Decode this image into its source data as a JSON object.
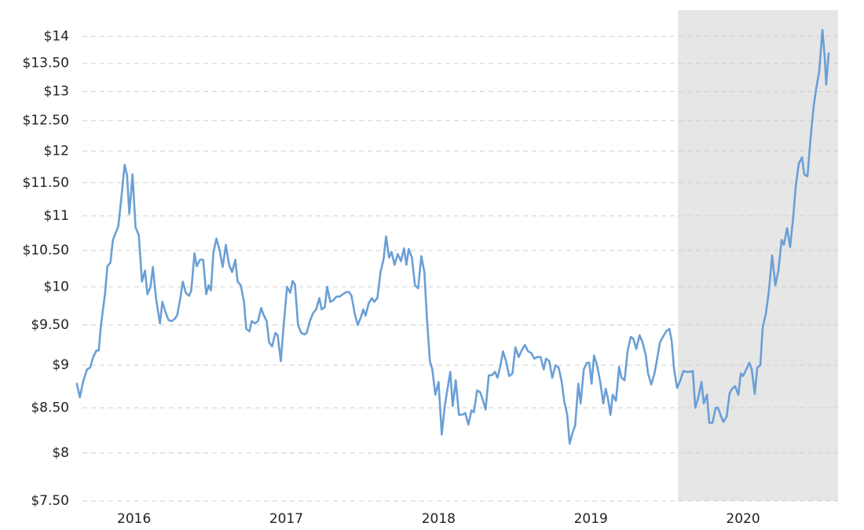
{
  "chart_data": {
    "type": "line",
    "log_scale_y": true,
    "grid": true,
    "xlim": [
      2015.62,
      2020.624
    ],
    "xticks": [
      2016,
      2017,
      2018,
      2019,
      2020
    ],
    "ylim": [
      7.5,
      14.5
    ],
    "yticks": [
      {
        "value": 7.5,
        "label": "$7.50"
      },
      {
        "value": 8,
        "label": "$8"
      },
      {
        "value": 8.5,
        "label": "$8.50"
      },
      {
        "value": 9,
        "label": "$9"
      },
      {
        "value": 9.5,
        "label": "$9.50"
      },
      {
        "value": 10,
        "label": "$10"
      },
      {
        "value": 10.5,
        "label": "$10.50"
      },
      {
        "value": 11,
        "label": "$11"
      },
      {
        "value": 11.5,
        "label": "$11.50"
      },
      {
        "value": 12,
        "label": "$12"
      },
      {
        "value": 12.5,
        "label": "$12.50"
      },
      {
        "value": 13,
        "label": "$13"
      },
      {
        "value": 13.5,
        "label": "$13.50"
      },
      {
        "value": 14,
        "label": "$14"
      }
    ],
    "shaded_x": [
      2019.572,
      2020.624
    ],
    "shade_color": "#e6e6e6",
    "x": [
      2015.624,
      2015.644,
      2015.665,
      2015.691,
      2015.711,
      2015.732,
      2015.753,
      2015.768,
      2015.783,
      2015.809,
      2015.825,
      2015.845,
      2015.861,
      2015.897,
      2015.918,
      2015.938,
      2015.954,
      2015.969,
      2015.99,
      2016.01,
      2016.031,
      2016.052,
      2016.072,
      2016.088,
      2016.108,
      2016.124,
      2016.144,
      2016.17,
      2016.186,
      2016.206,
      2016.227,
      2016.247,
      2016.268,
      2016.284,
      2016.304,
      2016.32,
      2016.34,
      2016.361,
      2016.376,
      2016.397,
      2016.412,
      2016.433,
      2016.454,
      2016.474,
      2016.49,
      2016.505,
      2016.521,
      2016.541,
      2016.562,
      2016.582,
      2016.603,
      2016.624,
      2016.644,
      2016.665,
      2016.68,
      2016.701,
      2016.722,
      2016.737,
      2016.758,
      2016.773,
      2016.794,
      2016.814,
      2016.835,
      2016.851,
      2016.871,
      2016.887,
      2016.907,
      2016.928,
      2016.943,
      2016.964,
      2016.985,
      2017.005,
      2017.026,
      2017.041,
      2017.057,
      2017.077,
      2017.098,
      2017.119,
      2017.134,
      2017.155,
      2017.175,
      2017.196,
      2017.217,
      2017.232,
      2017.253,
      2017.268,
      2017.289,
      2017.309,
      2017.33,
      2017.351,
      2017.371,
      2017.392,
      2017.412,
      2017.428,
      2017.449,
      2017.469,
      2017.49,
      2017.505,
      2017.521,
      2017.541,
      2017.562,
      2017.577,
      2017.598,
      2017.619,
      2017.639,
      2017.655,
      2017.675,
      2017.691,
      2017.711,
      2017.732,
      2017.753,
      2017.773,
      2017.789,
      2017.804,
      2017.825,
      2017.845,
      2017.866,
      2017.887,
      2017.907,
      2017.923,
      2017.943,
      2017.959,
      2017.979,
      2018.0,
      2018.021,
      2018.041,
      2018.057,
      2018.077,
      2018.093,
      2018.113,
      2018.134,
      2018.155,
      2018.175,
      2018.196,
      2018.216,
      2018.232,
      2018.253,
      2018.273,
      2018.289,
      2018.309,
      2018.33,
      2018.351,
      2018.371,
      2018.387,
      2018.407,
      2018.423,
      2018.443,
      2018.464,
      2018.485,
      2018.505,
      2018.526,
      2018.546,
      2018.567,
      2018.588,
      2018.608,
      2018.629,
      2018.649,
      2018.67,
      2018.691,
      2018.706,
      2018.727,
      2018.747,
      2018.768,
      2018.789,
      2018.809,
      2018.825,
      2018.845,
      2018.861,
      2018.882,
      2018.897,
      2018.918,
      2018.933,
      2018.954,
      2018.974,
      2018.99,
      2019.005,
      2019.021,
      2019.041,
      2019.062,
      2019.082,
      2019.098,
      2019.113,
      2019.129,
      2019.144,
      2019.165,
      2019.186,
      2019.201,
      2019.222,
      2019.242,
      2019.263,
      2019.278,
      2019.299,
      2019.32,
      2019.34,
      2019.361,
      2019.376,
      2019.397,
      2019.418,
      2019.433,
      2019.454,
      2019.474,
      2019.495,
      2019.516,
      2019.531,
      2019.547,
      2019.567,
      2019.588,
      2019.608,
      2019.629,
      2019.65,
      2019.67,
      2019.686,
      2019.706,
      2019.727,
      2019.742,
      2019.763,
      2019.778,
      2019.799,
      2019.82,
      2019.835,
      2019.856,
      2019.871,
      2019.892,
      2019.912,
      2019.928,
      2019.948,
      2019.969,
      2019.985,
      2020.0,
      2020.021,
      2020.041,
      2020.057,
      2020.077,
      2020.093,
      2020.113,
      2020.129,
      2020.15,
      2020.17,
      2020.191,
      2020.212,
      2020.232,
      2020.253,
      2020.268,
      2020.289,
      2020.309,
      2020.33,
      2020.346,
      2020.366,
      2020.387,
      2020.402,
      2020.423,
      2020.443,
      2020.464,
      2020.48,
      2020.5,
      2020.521,
      2020.536,
      2020.546,
      2020.562
    ],
    "series": [
      {
        "color": "#6a9fd6",
        "values": [
          8.78,
          8.62,
          8.8,
          8.95,
          8.97,
          9.1,
          9.18,
          9.18,
          9.5,
          9.9,
          10.28,
          10.33,
          10.65,
          10.85,
          11.3,
          11.78,
          11.62,
          11.03,
          11.63,
          10.83,
          10.72,
          10.07,
          10.22,
          9.9,
          10.0,
          10.27,
          9.85,
          9.52,
          9.8,
          9.67,
          9.56,
          9.55,
          9.58,
          9.63,
          9.85,
          10.07,
          9.92,
          9.88,
          9.95,
          10.46,
          10.28,
          10.37,
          10.37,
          9.9,
          10.02,
          9.95,
          10.47,
          10.67,
          10.5,
          10.27,
          10.58,
          10.3,
          10.2,
          10.37,
          10.07,
          10.02,
          9.8,
          9.45,
          9.42,
          9.55,
          9.52,
          9.55,
          9.72,
          9.63,
          9.55,
          9.28,
          9.23,
          9.4,
          9.37,
          9.05,
          9.55,
          10.0,
          9.92,
          10.08,
          10.03,
          9.5,
          9.4,
          9.38,
          9.4,
          9.55,
          9.65,
          9.7,
          9.85,
          9.7,
          9.73,
          10.0,
          9.8,
          9.82,
          9.87,
          9.87,
          9.9,
          9.93,
          9.93,
          9.88,
          9.65,
          9.5,
          9.6,
          9.7,
          9.62,
          9.78,
          9.85,
          9.8,
          9.85,
          10.2,
          10.38,
          10.7,
          10.4,
          10.48,
          10.3,
          10.45,
          10.35,
          10.53,
          10.3,
          10.52,
          10.4,
          10.02,
          9.98,
          10.42,
          10.2,
          9.6,
          9.05,
          8.95,
          8.65,
          8.8,
          8.2,
          8.52,
          8.7,
          8.92,
          8.52,
          8.82,
          8.42,
          8.42,
          8.44,
          8.31,
          8.47,
          8.45,
          8.7,
          8.68,
          8.6,
          8.48,
          8.88,
          8.88,
          8.92,
          8.85,
          9.0,
          9.17,
          9.05,
          8.87,
          8.9,
          9.22,
          9.1,
          9.18,
          9.25,
          9.17,
          9.15,
          9.08,
          9.1,
          9.1,
          8.95,
          9.08,
          9.05,
          8.85,
          9.0,
          8.97,
          8.8,
          8.58,
          8.42,
          8.1,
          8.23,
          8.3,
          8.78,
          8.55,
          8.95,
          9.03,
          9.03,
          8.78,
          9.12,
          9.0,
          8.8,
          8.55,
          8.72,
          8.6,
          8.42,
          8.65,
          8.58,
          8.98,
          8.85,
          8.82,
          9.18,
          9.35,
          9.33,
          9.2,
          9.37,
          9.28,
          9.12,
          8.9,
          8.77,
          8.9,
          9.05,
          9.28,
          9.35,
          9.42,
          9.45,
          9.3,
          8.95,
          8.73,
          8.82,
          8.93,
          8.92,
          8.92,
          8.93,
          8.5,
          8.62,
          8.8,
          8.55,
          8.65,
          8.33,
          8.33,
          8.5,
          8.5,
          8.4,
          8.34,
          8.4,
          8.67,
          8.72,
          8.75,
          8.65,
          8.9,
          8.87,
          8.95,
          9.03,
          8.95,
          8.66,
          8.97,
          9.0,
          9.47,
          9.65,
          9.95,
          10.43,
          10.02,
          10.22,
          10.65,
          10.58,
          10.82,
          10.55,
          11.0,
          11.45,
          11.8,
          11.9,
          11.63,
          11.6,
          12.2,
          12.75,
          13.05,
          13.35,
          14.12,
          13.63,
          13.12,
          13.68
        ]
      }
    ]
  }
}
